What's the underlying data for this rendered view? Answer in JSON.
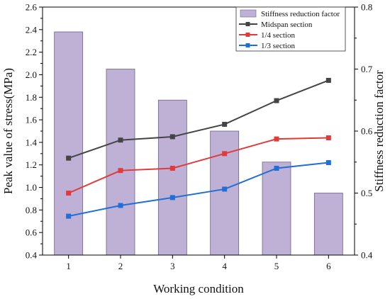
{
  "chart_data": {
    "type": "bar",
    "categories": [
      "1",
      "2",
      "3",
      "4",
      "5",
      "6"
    ],
    "xlabel": "Working condition",
    "ylabel": "Peak value of stress(MPa)",
    "y2label": "Stiffness reduction factor",
    "ylim": [
      0.4,
      2.6
    ],
    "y2lim": [
      0.4,
      0.8
    ],
    "yticks": [
      "0.4",
      "0.6",
      "0.8",
      "1.0",
      "1.2",
      "1.4",
      "1.6",
      "1.8",
      "2.0",
      "2.2",
      "2.4",
      "2.6"
    ],
    "y2ticks": [
      "0.4",
      "0.5",
      "0.6",
      "0.7",
      "0.8"
    ],
    "legend_position": "top-right",
    "bars": {
      "name": "Stiffness reduction factor",
      "axis": "right",
      "color": "#bfb0d6",
      "values": [
        0.76,
        0.7,
        0.65,
        0.6,
        0.55,
        0.5
      ]
    },
    "series": [
      {
        "name": "Midspan section",
        "axis": "left",
        "color": "#444444",
        "values": [
          1.26,
          1.42,
          1.45,
          1.56,
          1.77,
          1.95
        ]
      },
      {
        "name": "1/4 section",
        "axis": "left",
        "color": "#e03a3a",
        "values": [
          0.95,
          1.15,
          1.17,
          1.3,
          1.43,
          1.44
        ]
      },
      {
        "name": "1/3 section",
        "axis": "left",
        "color": "#1f6fd6",
        "values": [
          0.745,
          0.84,
          0.91,
          0.985,
          1.17,
          1.22
        ]
      }
    ]
  }
}
